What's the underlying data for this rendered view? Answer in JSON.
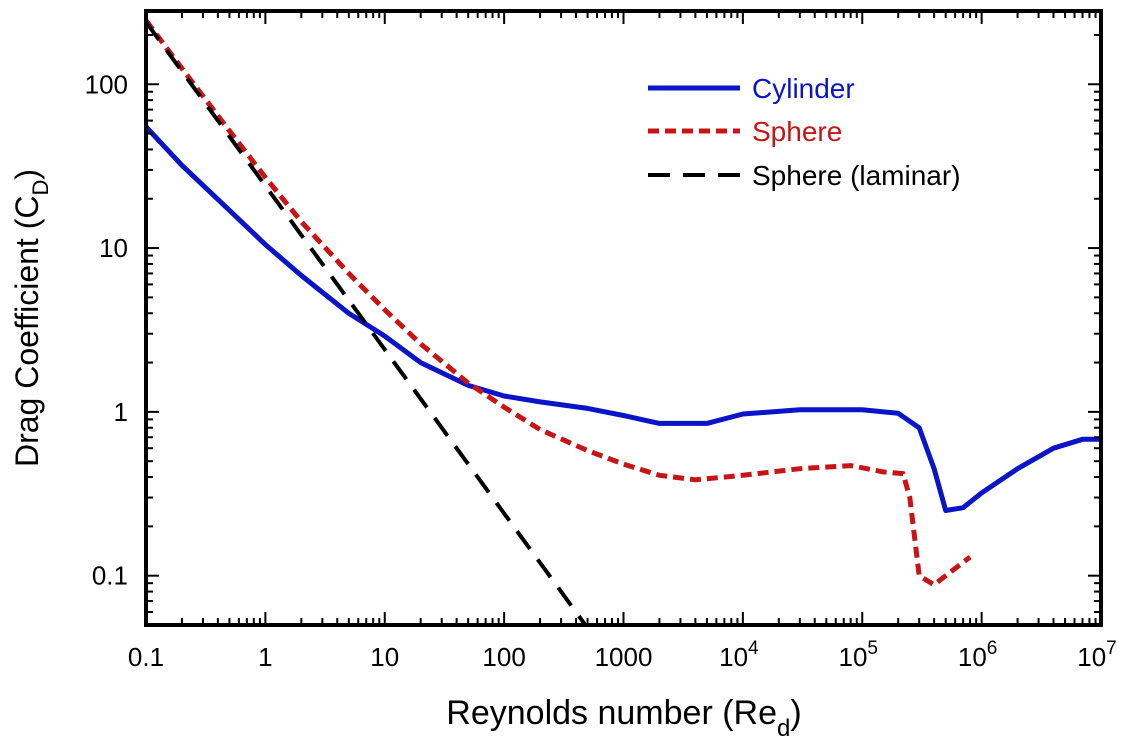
{
  "chart_data": {
    "type": "line",
    "xscale": "log",
    "yscale": "log",
    "xlim": [
      0.1,
      10000000
    ],
    "ylim": [
      0.05,
      280
    ],
    "grid": false,
    "legend_position": "top-right",
    "xlabel": {
      "text": "Reynolds number (Re",
      "sub": "d",
      "tail": ")"
    },
    "ylabel": {
      "text": "Drag Coefficient (C",
      "sub": "D",
      "tail": ")"
    },
    "x_ticks": [
      {
        "value": 0.1,
        "label": "0.1"
      },
      {
        "value": 1,
        "label": "1"
      },
      {
        "value": 10,
        "label": "10"
      },
      {
        "value": 100,
        "label": "100"
      },
      {
        "value": 1000,
        "label": "1000"
      },
      {
        "value": 10000,
        "base": "10",
        "exp": "4"
      },
      {
        "value": 100000,
        "base": "10",
        "exp": "5"
      },
      {
        "value": 1000000,
        "base": "10",
        "exp": "6"
      },
      {
        "value": 10000000,
        "base": "10",
        "exp": "7"
      }
    ],
    "y_ticks": [
      {
        "value": 0.1,
        "label": "0.1"
      },
      {
        "value": 1,
        "label": "1"
      },
      {
        "value": 10,
        "label": "10"
      },
      {
        "value": 100,
        "label": "100"
      }
    ],
    "series": [
      {
        "name": "Cylinder",
        "color": "#0a14c8",
        "dash": "solid",
        "points": [
          [
            0.1,
            55
          ],
          [
            0.2,
            32
          ],
          [
            0.5,
            17
          ],
          [
            1,
            10.5
          ],
          [
            2,
            6.8
          ],
          [
            5,
            4.0
          ],
          [
            10,
            2.9
          ],
          [
            20,
            2.0
          ],
          [
            50,
            1.45
          ],
          [
            100,
            1.25
          ],
          [
            200,
            1.15
          ],
          [
            500,
            1.05
          ],
          [
            1000,
            0.95
          ],
          [
            2000,
            0.85
          ],
          [
            5000,
            0.85
          ],
          [
            10000,
            0.97
          ],
          [
            30000,
            1.03
          ],
          [
            100000,
            1.03
          ],
          [
            200000,
            0.98
          ],
          [
            300000,
            0.8
          ],
          [
            400000,
            0.45
          ],
          [
            500000,
            0.25
          ],
          [
            700000,
            0.26
          ],
          [
            1000000,
            0.32
          ],
          [
            2000000,
            0.45
          ],
          [
            4000000,
            0.6
          ],
          [
            7000000,
            0.68
          ],
          [
            10000000,
            0.68
          ]
        ]
      },
      {
        "name": "Sphere",
        "color": "#c81414",
        "dash": "short",
        "points": [
          [
            0.1,
            245
          ],
          [
            0.2,
            125
          ],
          [
            0.5,
            52
          ],
          [
            1,
            27
          ],
          [
            2,
            14.5
          ],
          [
            5,
            7.0
          ],
          [
            10,
            4.2
          ],
          [
            20,
            2.6
          ],
          [
            50,
            1.5
          ],
          [
            100,
            1.07
          ],
          [
            200,
            0.78
          ],
          [
            500,
            0.58
          ],
          [
            1000,
            0.48
          ],
          [
            2000,
            0.41
          ],
          [
            4000,
            0.385
          ],
          [
            10000,
            0.41
          ],
          [
            30000,
            0.45
          ],
          [
            80000,
            0.47
          ],
          [
            150000,
            0.43
          ],
          [
            220000,
            0.42
          ],
          [
            250000,
            0.3
          ],
          [
            300000,
            0.1
          ],
          [
            400000,
            0.088
          ],
          [
            500000,
            0.1
          ],
          [
            800000,
            0.13
          ]
        ]
      },
      {
        "name": "Sphere (laminar)",
        "color": "#000000",
        "dash": "long",
        "formula": "24/Re",
        "points": [
          [
            0.1,
            240
          ],
          [
            1,
            24
          ],
          [
            10,
            2.4
          ],
          [
            100,
            0.24
          ],
          [
            480,
            0.05
          ]
        ]
      }
    ]
  }
}
